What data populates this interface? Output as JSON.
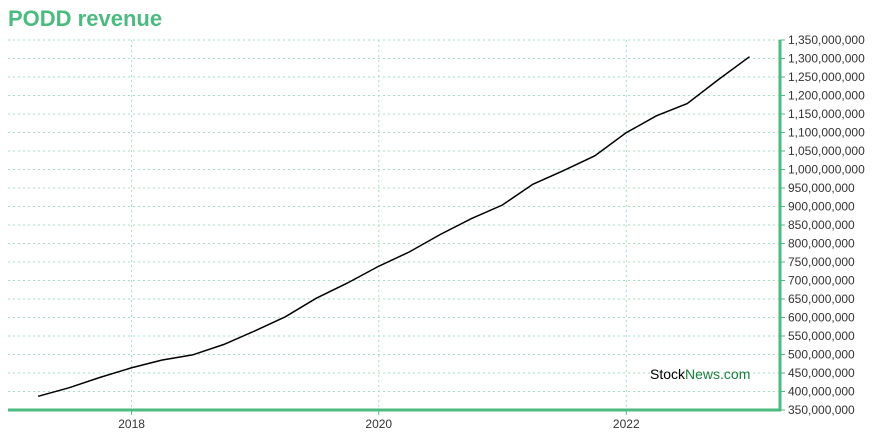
{
  "chart_data": {
    "type": "line",
    "title": "PODD revenue",
    "xlabel": "",
    "ylabel": "",
    "x_tick_labels": [
      "2018",
      "2020",
      "2022"
    ],
    "x": [
      "2017-03-31",
      "2017-06-30",
      "2017-09-30",
      "2017-12-31",
      "2018-03-31",
      "2018-06-30",
      "2018-09-30",
      "2018-12-31",
      "2019-03-31",
      "2019-06-30",
      "2019-09-30",
      "2019-12-31",
      "2020-03-31",
      "2020-06-30",
      "2020-09-30",
      "2020-12-31",
      "2021-03-31",
      "2021-06-30",
      "2021-09-30",
      "2021-12-31",
      "2022-03-31",
      "2022-06-30",
      "2022-09-30",
      "2022-12-31"
    ],
    "series": [
      {
        "values": [
          387000000,
          410000000,
          438000000,
          463800000,
          485000000,
          499000000,
          527000000,
          563800000,
          602000000,
          652000000,
          693000000,
          738000000,
          777000000,
          824000000,
          867000000,
          904000000,
          960000000,
          997000000,
          1037000000,
          1099000000,
          1145000000,
          1178000000,
          1243000000,
          1305000000
        ]
      }
    ],
    "ylim": [
      350000000,
      1350000000
    ],
    "y_ticks": [
      350000000,
      400000000,
      450000000,
      500000000,
      550000000,
      600000000,
      650000000,
      700000000,
      750000000,
      800000000,
      850000000,
      900000000,
      950000000,
      1000000000,
      1050000000,
      1100000000,
      1150000000,
      1200000000,
      1250000000,
      1300000000,
      1350000000
    ],
    "y_tick_labels": [
      "350,000,000",
      "400,000,000",
      "450,000,000",
      "500,000,000",
      "550,000,000",
      "600,000,000",
      "650,000,000",
      "700,000,000",
      "750,000,000",
      "800,000,000",
      "850,000,000",
      "900,000,000",
      "950,000,000",
      "1,000,000,000",
      "1,050,000,000",
      "1,100,000,000",
      "1,150,000,000",
      "1,200,000,000",
      "1,250,000,000",
      "1,300,000,000",
      "1,350,000,000"
    ],
    "grid": true,
    "legend": "none"
  },
  "watermark": {
    "part1": "Stock",
    "part2": "News.com"
  },
  "colors": {
    "accent": "#4cbb7f",
    "line": "#000000",
    "grid": "#a8dcc0",
    "watermark_dark": "#000000",
    "watermark_green": "#1a7f3c"
  }
}
